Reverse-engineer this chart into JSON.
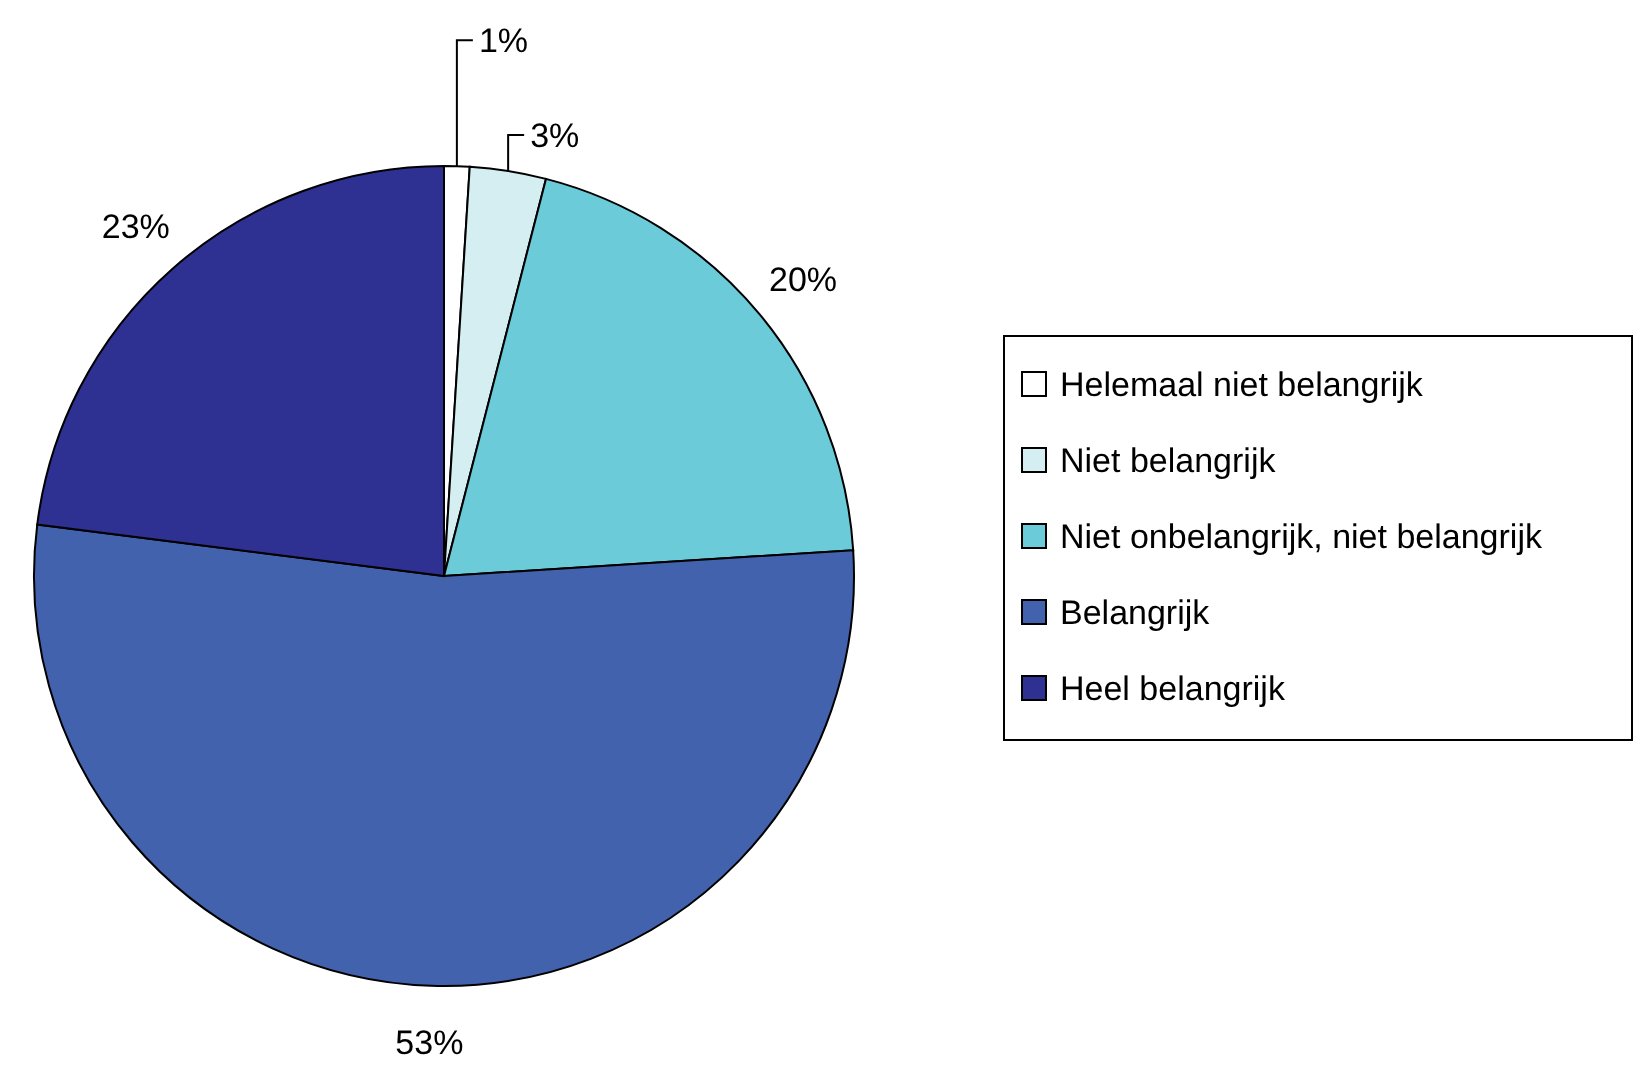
{
  "chart_data": {
    "type": "pie",
    "categories": [
      "Helemaal niet belangrijk",
      "Niet belangrijk",
      "Niet onbelangrijk, niet belangrijk",
      "Belangrijk",
      "Heel belangrijk"
    ],
    "values": [
      1,
      3,
      20,
      53,
      23
    ],
    "colors": [
      "#ffffff",
      "#d4eef2",
      "#6ccbd9",
      "#4262ae",
      "#2e3192"
    ],
    "value_labels": [
      "1%",
      "3%",
      "20%",
      "53%",
      "23%"
    ],
    "legend": "right"
  }
}
